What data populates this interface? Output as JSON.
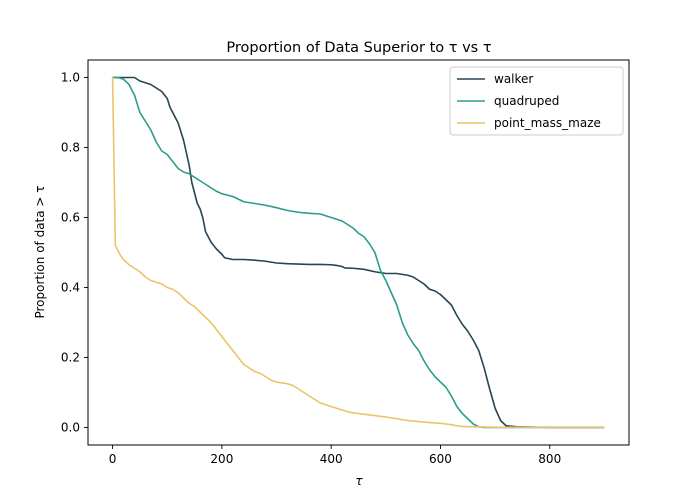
{
  "chart_data": {
    "type": "line",
    "title": "Proportion of Data Superior to τ vs τ",
    "xlabel": "τ",
    "ylabel": "Proportion of data > τ",
    "xlim": [
      -45,
      945
    ],
    "ylim": [
      -0.05,
      1.05
    ],
    "xticks": [
      0,
      200,
      400,
      600,
      800
    ],
    "xtick_labels": [
      "0",
      "200",
      "400",
      "600",
      "800"
    ],
    "yticks": [
      0.0,
      0.2,
      0.4,
      0.6,
      0.8,
      1.0
    ],
    "ytick_labels": [
      "0.0",
      "0.2",
      "0.4",
      "0.6",
      "0.8",
      "1.0"
    ],
    "grid": false,
    "legend_position": "top-right",
    "series": [
      {
        "name": "walker",
        "color": "#264653",
        "points": [
          [
            0,
            1.0
          ],
          [
            10,
            1.0
          ],
          [
            20,
            1.0
          ],
          [
            30,
            1.0
          ],
          [
            40,
            1.0
          ],
          [
            50,
            0.99
          ],
          [
            60,
            0.985
          ],
          [
            70,
            0.98
          ],
          [
            80,
            0.97
          ],
          [
            90,
            0.96
          ],
          [
            100,
            0.94
          ],
          [
            105,
            0.915
          ],
          [
            110,
            0.9
          ],
          [
            120,
            0.87
          ],
          [
            130,
            0.82
          ],
          [
            140,
            0.75
          ],
          [
            145,
            0.7
          ],
          [
            150,
            0.67
          ],
          [
            155,
            0.64
          ],
          [
            160,
            0.625
          ],
          [
            165,
            0.6
          ],
          [
            170,
            0.56
          ],
          [
            175,
            0.545
          ],
          [
            180,
            0.53
          ],
          [
            190,
            0.51
          ],
          [
            200,
            0.495
          ],
          [
            205,
            0.485
          ],
          [
            220,
            0.48
          ],
          [
            240,
            0.48
          ],
          [
            260,
            0.478
          ],
          [
            280,
            0.475
          ],
          [
            300,
            0.47
          ],
          [
            320,
            0.468
          ],
          [
            340,
            0.467
          ],
          [
            360,
            0.466
          ],
          [
            380,
            0.466
          ],
          [
            400,
            0.465
          ],
          [
            410,
            0.463
          ],
          [
            420,
            0.46
          ],
          [
            425,
            0.456
          ],
          [
            440,
            0.455
          ],
          [
            460,
            0.452
          ],
          [
            480,
            0.445
          ],
          [
            500,
            0.44
          ],
          [
            520,
            0.44
          ],
          [
            540,
            0.435
          ],
          [
            550,
            0.43
          ],
          [
            560,
            0.42
          ],
          [
            570,
            0.41
          ],
          [
            580,
            0.395
          ],
          [
            590,
            0.39
          ],
          [
            600,
            0.38
          ],
          [
            610,
            0.365
          ],
          [
            620,
            0.35
          ],
          [
            630,
            0.32
          ],
          [
            640,
            0.295
          ],
          [
            650,
            0.275
          ],
          [
            660,
            0.25
          ],
          [
            670,
            0.22
          ],
          [
            680,
            0.17
          ],
          [
            690,
            0.11
          ],
          [
            700,
            0.055
          ],
          [
            710,
            0.02
          ],
          [
            720,
            0.005
          ],
          [
            740,
            0.002
          ],
          [
            800,
            0.0
          ],
          [
            900,
            0.0
          ]
        ]
      },
      {
        "name": "quadruped",
        "color": "#2a9d8f",
        "points": [
          [
            0,
            1.0
          ],
          [
            10,
            1.0
          ],
          [
            20,
            0.995
          ],
          [
            30,
            0.98
          ],
          [
            40,
            0.95
          ],
          [
            50,
            0.9
          ],
          [
            60,
            0.875
          ],
          [
            70,
            0.85
          ],
          [
            80,
            0.815
          ],
          [
            90,
            0.79
          ],
          [
            100,
            0.78
          ],
          [
            110,
            0.76
          ],
          [
            120,
            0.74
          ],
          [
            130,
            0.73
          ],
          [
            140,
            0.725
          ],
          [
            150,
            0.715
          ],
          [
            160,
            0.705
          ],
          [
            170,
            0.695
          ],
          [
            180,
            0.685
          ],
          [
            190,
            0.675
          ],
          [
            200,
            0.668
          ],
          [
            220,
            0.66
          ],
          [
            240,
            0.645
          ],
          [
            260,
            0.64
          ],
          [
            280,
            0.635
          ],
          [
            300,
            0.628
          ],
          [
            320,
            0.62
          ],
          [
            340,
            0.615
          ],
          [
            360,
            0.612
          ],
          [
            380,
            0.61
          ],
          [
            400,
            0.6
          ],
          [
            420,
            0.59
          ],
          [
            440,
            0.57
          ],
          [
            450,
            0.555
          ],
          [
            460,
            0.545
          ],
          [
            470,
            0.525
          ],
          [
            480,
            0.5
          ],
          [
            490,
            0.45
          ],
          [
            500,
            0.42
          ],
          [
            510,
            0.385
          ],
          [
            520,
            0.35
          ],
          [
            530,
            0.3
          ],
          [
            540,
            0.265
          ],
          [
            550,
            0.24
          ],
          [
            560,
            0.22
          ],
          [
            570,
            0.19
          ],
          [
            580,
            0.165
          ],
          [
            590,
            0.145
          ],
          [
            600,
            0.13
          ],
          [
            610,
            0.115
          ],
          [
            620,
            0.09
          ],
          [
            630,
            0.06
          ],
          [
            640,
            0.04
          ],
          [
            650,
            0.025
          ],
          [
            660,
            0.01
          ],
          [
            670,
            0.002
          ],
          [
            680,
            0.0
          ],
          [
            750,
            0.0
          ],
          [
            900,
            0.0
          ]
        ]
      },
      {
        "name": "point_mass_maze",
        "color": "#e9c46a",
        "points": [
          [
            0,
            1.0
          ],
          [
            5,
            0.52
          ],
          [
            10,
            0.505
          ],
          [
            15,
            0.49
          ],
          [
            20,
            0.48
          ],
          [
            30,
            0.465
          ],
          [
            40,
            0.455
          ],
          [
            50,
            0.445
          ],
          [
            60,
            0.43
          ],
          [
            70,
            0.42
          ],
          [
            80,
            0.415
          ],
          [
            90,
            0.41
          ],
          [
            100,
            0.4
          ],
          [
            110,
            0.395
          ],
          [
            120,
            0.385
          ],
          [
            130,
            0.37
          ],
          [
            140,
            0.355
          ],
          [
            150,
            0.345
          ],
          [
            160,
            0.33
          ],
          [
            170,
            0.315
          ],
          [
            180,
            0.3
          ],
          [
            190,
            0.28
          ],
          [
            200,
            0.26
          ],
          [
            210,
            0.24
          ],
          [
            220,
            0.22
          ],
          [
            230,
            0.2
          ],
          [
            240,
            0.18
          ],
          [
            250,
            0.17
          ],
          [
            260,
            0.16
          ],
          [
            270,
            0.155
          ],
          [
            280,
            0.145
          ],
          [
            290,
            0.135
          ],
          [
            300,
            0.13
          ],
          [
            320,
            0.125
          ],
          [
            330,
            0.12
          ],
          [
            340,
            0.11
          ],
          [
            350,
            0.1
          ],
          [
            360,
            0.09
          ],
          [
            370,
            0.08
          ],
          [
            380,
            0.07
          ],
          [
            390,
            0.065
          ],
          [
            400,
            0.06
          ],
          [
            410,
            0.055
          ],
          [
            420,
            0.05
          ],
          [
            430,
            0.045
          ],
          [
            440,
            0.042
          ],
          [
            450,
            0.04
          ],
          [
            460,
            0.038
          ],
          [
            470,
            0.036
          ],
          [
            480,
            0.034
          ],
          [
            500,
            0.03
          ],
          [
            520,
            0.025
          ],
          [
            540,
            0.02
          ],
          [
            560,
            0.017
          ],
          [
            580,
            0.014
          ],
          [
            600,
            0.012
          ],
          [
            610,
            0.01
          ],
          [
            620,
            0.008
          ],
          [
            630,
            0.005
          ],
          [
            640,
            0.003
          ],
          [
            660,
            0.002
          ],
          [
            700,
            0.001
          ],
          [
            800,
            0.0
          ],
          [
            900,
            0.0
          ]
        ]
      }
    ]
  }
}
